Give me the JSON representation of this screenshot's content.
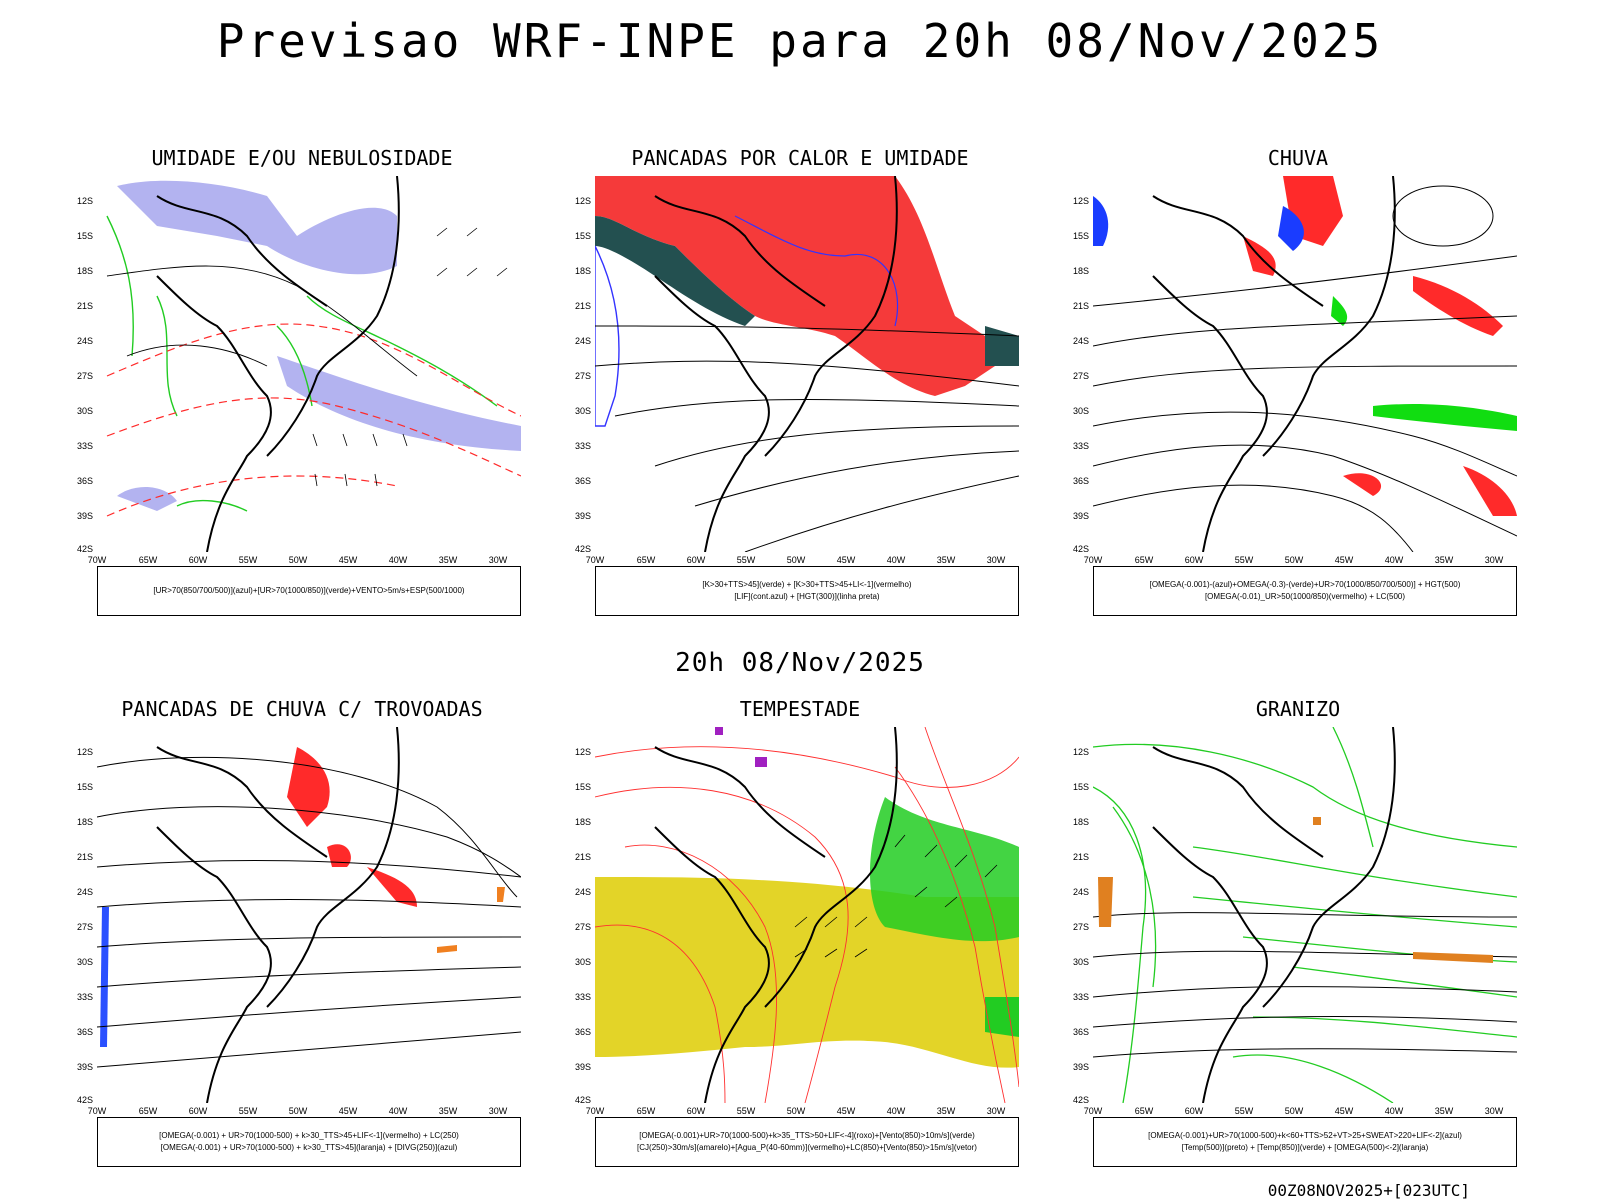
{
  "title": "Previsao WRF-INPE  para 20h 08/Nov/2025",
  "subtitle": "20h 08/Nov/2025",
  "footer": "00Z08NOV2025+[023UTC]",
  "y_ticks": [
    "12S",
    "15S",
    "18S",
    "21S",
    "24S",
    "27S",
    "30S",
    "33S",
    "36S",
    "39S",
    "42S"
  ],
  "x_ticks": [
    "70W",
    "65W",
    "60W",
    "55W",
    "50W",
    "45W",
    "40W",
    "35W",
    "30W"
  ],
  "panels": [
    {
      "title": "UMIDADE E/OU NEBULOSIDADE",
      "legend": [
        "[UR>70(850/700/500)](azul)+[UR>70(1000/850)](verde)+VENTO>5m/s+ESP(500/1000)"
      ],
      "colors": {
        "fill": "#b3b3f0",
        "green": "#22cc22",
        "red": "#ff2a2a"
      }
    },
    {
      "title": "PANCADAS POR CALOR E UMIDADE",
      "legend": [
        "[K>30+TTS>45](verde) + [K>30+TTS>45+LI<-1](vermelho)",
        "[LIF](cont.azul) + [HGT(300)](linha preta)"
      ],
      "colors": {
        "red": "#f53a3a",
        "green": "#235050",
        "blue": "#3333ff"
      }
    },
    {
      "title": "CHUVA",
      "legend": [
        "[OMEGA(-0.001)-(azul)+OMEGA(-0.3)-(verde)+UR>70(1000/850/700/500)] + HGT(500)",
        "[OMEGA(-0.01)_UR>50(1000/850)(vermelho) + LC(500)"
      ],
      "colors": {
        "red": "#ff2a2a",
        "green": "#11dd11",
        "blue": "#1a3cff"
      }
    },
    {
      "title": "PANCADAS DE CHUVA C/ TROVOADAS",
      "legend": [
        "[OMEGA(-0.001) + UR>70(1000-500) + k>30_TTS>45+LIF<-1](vermelho) + LC(250)",
        "[OMEGA(-0.001) + UR>70(1000-500) + k>30_TTS>45](laranja) + [DIVG(250)](azul)"
      ],
      "colors": {
        "red": "#ff2a2a",
        "orange": "#f08020",
        "blue": "#2a50ff"
      }
    },
    {
      "title": "TEMPESTADE",
      "legend": [
        "[OMEGA(-0.001)+UR>70(1000-500)+k>35_TTS>50+LIF<-4](roxo)+[Vento(850)>10m/s](verde)",
        "[CJ(250)>30m/s](amarelo)+[Agua_P(40-60mm)](vermelho)+LC(850)+[Vento(850)>15m/s](vetor)"
      ],
      "colors": {
        "yellow": "#e3d428",
        "green": "#22cc22",
        "red": "#ff3030",
        "purple": "#a020c0"
      }
    },
    {
      "title": "GRANIZO",
      "legend": [
        "[OMEGA(-0.001)+UR>70(1000-500)+k<60+TTS>52+VT>25+SWEAT>220+LIF<-2](azul)",
        "[Temp(500)](preto) + [Temp(850)](verde) + [OMEGA(500)<-2](laranja)"
      ],
      "colors": {
        "green": "#22cc22",
        "orange": "#e08020"
      }
    }
  ]
}
